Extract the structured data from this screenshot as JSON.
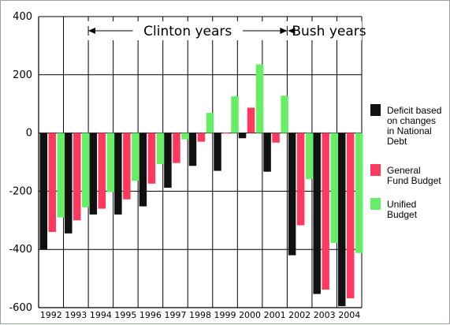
{
  "chart_data": {
    "type": "bar",
    "title": "",
    "xlabel": "",
    "ylabel": "",
    "ylim": [
      -600,
      400
    ],
    "yticks": [
      400,
      200,
      0,
      -200,
      -400,
      -600
    ],
    "grid": true,
    "legend_position": "right",
    "categories": [
      "1992",
      "1993",
      "1994",
      "1995",
      "1996",
      "1997",
      "1998",
      "1999",
      "2000",
      "2001",
      "2002",
      "2003",
      "2004"
    ],
    "series": [
      {
        "name": "Deficit based on changes in National Debt",
        "color": "#111111",
        "values": [
          -400,
          -345,
          -280,
          -280,
          -252,
          -188,
          -113,
          -130,
          -18,
          -133,
          -420,
          -553,
          -595
        ]
      },
      {
        "name": "General Fund Budget",
        "color": "#ff3860",
        "values": [
          -340,
          -300,
          -260,
          -228,
          -174,
          -103,
          -30,
          1,
          87,
          -33,
          -317,
          -538,
          -568
        ]
      },
      {
        "name": "Unified Budget",
        "color": "#66ee66",
        "values": [
          -290,
          -255,
          -203,
          -164,
          -107,
          -22,
          69,
          126,
          236,
          128,
          -158,
          -378,
          -412
        ]
      }
    ],
    "legend_lines": [
      [
        "Deficit based",
        "on changes",
        "in National",
        "Debt"
      ],
      [
        "General",
        "Fund Budget"
      ],
      [
        "Unified",
        "Budget"
      ]
    ],
    "annotations": {
      "clinton": {
        "label": "Clinton years",
        "from": "1994",
        "to": "2001"
      },
      "bush": {
        "label": "Bush years",
        "from": "2002",
        "to": "2004"
      }
    }
  }
}
